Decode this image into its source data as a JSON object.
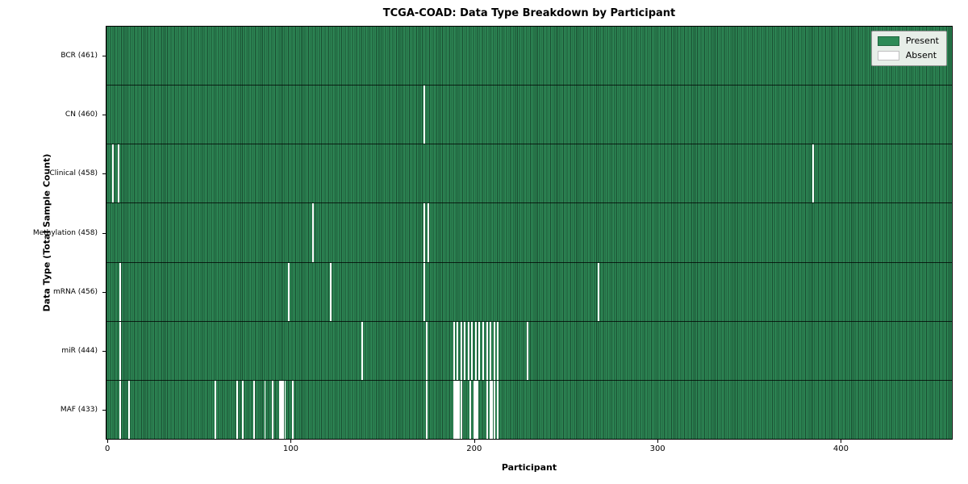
{
  "chart_data": {
    "type": "heatmap",
    "title": "TCGA-COAD: Data Type Breakdown by Participant",
    "xlabel": "Participant",
    "ylabel": "Data Type (Total Sample Count)",
    "n_participants": 461,
    "xlim": [
      0,
      461
    ],
    "x_ticks": [
      0,
      100,
      200,
      300,
      400
    ],
    "grid": false,
    "legend": {
      "position": "upper right",
      "entries": [
        "Present",
        "Absent"
      ]
    },
    "colors": {
      "present": "#2e8b57",
      "absent": "#ffffff",
      "bar_edge": "#00000073",
      "row_divider": "#000000",
      "legend_bg": "#e7eee8"
    },
    "rows": [
      {
        "data_type": "BCR",
        "label": "BCR (461)",
        "total": 461,
        "absent_participants": []
      },
      {
        "data_type": "CN",
        "label": "CN (460)",
        "total": 460,
        "absent_participants": [
          173
        ]
      },
      {
        "data_type": "Clinical",
        "label": "Clinical (458)",
        "total": 458,
        "absent_participants": [
          3,
          6,
          385
        ]
      },
      {
        "data_type": "Methylation",
        "label": "Methylation (458)",
        "total": 458,
        "absent_participants": [
          112,
          173,
          175
        ]
      },
      {
        "data_type": "mRNA",
        "label": "mRNA (456)",
        "total": 456,
        "absent_participants": [
          7,
          99,
          122,
          173,
          268
        ]
      },
      {
        "data_type": "miR",
        "label": "miR (444)",
        "total": 444,
        "absent_participants": [
          7,
          139,
          174,
          189,
          191,
          193,
          195,
          197,
          199,
          201,
          203,
          205,
          207,
          209,
          211,
          213,
          229
        ]
      },
      {
        "data_type": "MAF",
        "label": "MAF (433)",
        "total": 433,
        "absent_participants": [
          7,
          12,
          59,
          71,
          74,
          80,
          86,
          90,
          94,
          95,
          96,
          97,
          101,
          174,
          189,
          190,
          191,
          192,
          193,
          198,
          200,
          201,
          202,
          207,
          209,
          210,
          211,
          213
        ]
      }
    ]
  }
}
